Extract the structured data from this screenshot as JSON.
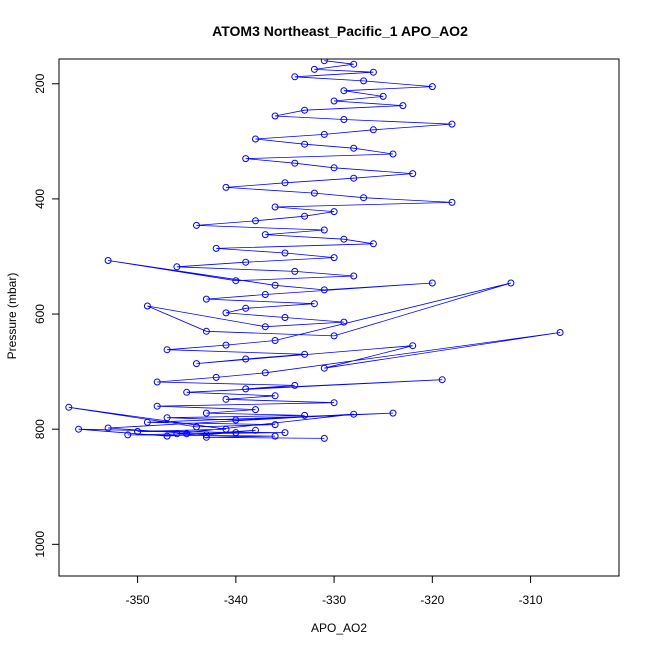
{
  "chart_data": {
    "type": "scatter",
    "title": "ATOM3 Northeast_Pacific_1 APO_AO2",
    "xlabel": "APO_AO2",
    "ylabel": "Pressure (mbar)",
    "xlim": [
      -358.0,
      -301.0
    ],
    "ylim": [
      1055,
      157
    ],
    "y_reversed": true,
    "xticks": [
      -350,
      -340,
      -330,
      -320,
      -310
    ],
    "yticks": [
      200,
      400,
      600,
      800,
      1000
    ],
    "grid": false,
    "legend": "none",
    "style": {
      "point": "open-circle",
      "connected_by_lines": true
    },
    "series_color": "#0000ff",
    "series": [
      {
        "x": [
          -331.0,
          -328.0,
          -332.0,
          -326.0,
          -334.0,
          -327.0,
          -320.0,
          -329.0,
          -325.0,
          -330.0,
          -323.0,
          -333.0,
          -336.0,
          -329.0,
          -318.0,
          -326.0,
          -331.0,
          -338.0,
          -333.0,
          -328.0,
          -324.0,
          -339.0,
          -334.0,
          -330.0,
          -322.0,
          -328.0,
          -335.0,
          -341.0,
          -332.0,
          -327.0,
          -318.0,
          -336.0,
          -330.0,
          -333.0,
          -338.0,
          -344.0,
          -331.0,
          -337.0,
          -329.0,
          -326.0,
          -342.0,
          -335.0,
          -330.0,
          -339.0,
          -346.0,
          -334.0,
          -328.0,
          -340.0,
          -353.0,
          -336.0,
          -331.0,
          -320.0,
          -337.0,
          -343.0,
          -332.0,
          -339.0,
          -341.0,
          -335.0,
          -329.0,
          -337.0,
          -349.0,
          -343.0,
          -330.0,
          -312.0,
          -336.0,
          -341.0,
          -347.0,
          -333.0,
          -339.0,
          -344.0,
          -322.0,
          -331.0,
          -307.0,
          -337.0,
          -342.0,
          -348.0,
          -334.0,
          -339.0,
          -319.0,
          -345.0,
          -336.0,
          -341.0,
          -330.0,
          -348.0,
          -338.0,
          -343.0,
          -333.0,
          -347.0,
          -340.0,
          -324.0,
          -349.0,
          -336.0,
          -344.0,
          -357.0,
          -341.0,
          -350.0,
          -335.0,
          -346.0,
          -328.0,
          -353.0,
          -343.0,
          -338.0,
          -347.0,
          -356.0,
          -340.0,
          -345.0,
          -351.0,
          -336.0,
          -343.0,
          -331.0
        ],
        "y": [
          160,
          166,
          175,
          180,
          188,
          195,
          205,
          212,
          222,
          230,
          238,
          246,
          256,
          262,
          270,
          280,
          288,
          296,
          305,
          312,
          322,
          330,
          338,
          346,
          356,
          364,
          372,
          380,
          390,
          398,
          406,
          414,
          422,
          430,
          438,
          446,
          454,
          462,
          470,
          478,
          486,
          494,
          502,
          510,
          518,
          526,
          534,
          542,
          507,
          550,
          558,
          546,
          566,
          574,
          582,
          590,
          598,
          606,
          614,
          622,
          586,
          630,
          638,
          546,
          646,
          654,
          662,
          670,
          678,
          686,
          655,
          694,
          632,
          702,
          710,
          718,
          724,
          730,
          714,
          736,
          742,
          748,
          754,
          760,
          766,
          772,
          776,
          780,
          784,
          772,
          788,
          792,
          796,
          762,
          800,
          804,
          806,
          808,
          774,
          798,
          810,
          802,
          812,
          800,
          806,
          808,
          810,
          812,
          814,
          816
        ]
      }
    ]
  }
}
